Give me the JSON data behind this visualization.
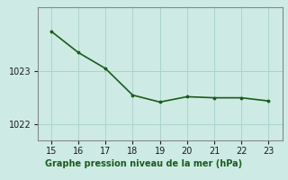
{
  "x": [
    15,
    16,
    17,
    18,
    19,
    20,
    21,
    22,
    23
  ],
  "y": [
    1023.75,
    1023.35,
    1023.05,
    1022.55,
    1022.42,
    1022.52,
    1022.5,
    1022.5,
    1022.44
  ],
  "line_color": "#1a5c1a",
  "marker_color": "#1a5c1a",
  "bg_color": "#ceeae4",
  "plot_bg_color": "#ceeae4",
  "label_bg_color": "#5a9a5a",
  "grid_color": "#aad4cc",
  "xlabel": "Graphe pression niveau de la mer (hPa)",
  "xlabel_color": "#1a5c1a",
  "xlabel_fontsize": 7.0,
  "xlim": [
    14.5,
    23.5
  ],
  "ylim": [
    1021.7,
    1024.2
  ],
  "yticks": [
    1022,
    1023
  ],
  "xticks": [
    15,
    16,
    17,
    18,
    19,
    20,
    21,
    22,
    23
  ],
  "tick_fontsize": 7.0,
  "line_width": 1.2,
  "marker_size": 3.5
}
